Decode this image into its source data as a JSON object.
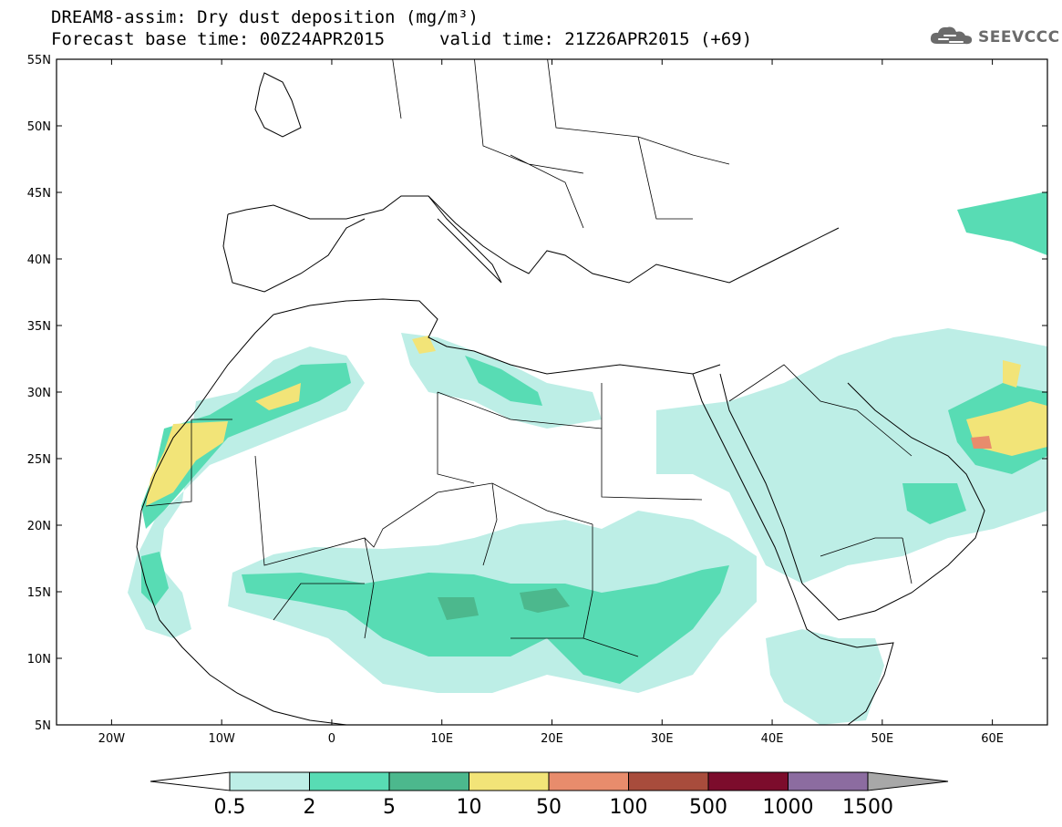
{
  "header": {
    "title_line1": "DREAM8-assim: Dry dust deposition (mg/m³)",
    "title_line2_left": "Forecast base time: 00Z24APR2015",
    "title_line2_right": "valid time: 21Z26APR2015 (+69)",
    "logo_text": "SEEVCCC",
    "logo_icon": "cloud-logo-icon"
  },
  "map": {
    "projection": "lat-lon",
    "lon_range": [
      -25,
      65
    ],
    "lat_range": [
      5,
      55
    ],
    "lat_ticks": [
      "55N",
      "50N",
      "45N",
      "40N",
      "35N",
      "30N",
      "25N",
      "20N",
      "15N",
      "10N",
      "5N"
    ],
    "lon_ticks": [
      "20W",
      "10W",
      "0",
      "10E",
      "20E",
      "30E",
      "40E",
      "50E",
      "60E"
    ],
    "colors": {
      "c05": "#bdeee6",
      "c2": "#58dcb4",
      "c5": "#4cb88d",
      "c10": "#f2e478",
      "c50": "#e88c6c",
      "border": "#000000"
    }
  },
  "colorbar": {
    "labels": [
      "0.5",
      "2",
      "5",
      "10",
      "50",
      "100",
      "500",
      "1000",
      "1500"
    ],
    "colors": [
      "#bdeee6",
      "#58dcb4",
      "#4cb88d",
      "#f2e478",
      "#e88c6c",
      "#a84c3c",
      "#7c0c2c",
      "#8c6ca0"
    ],
    "under_color": "#ffffff",
    "over_color": "#a8a8a8"
  }
}
